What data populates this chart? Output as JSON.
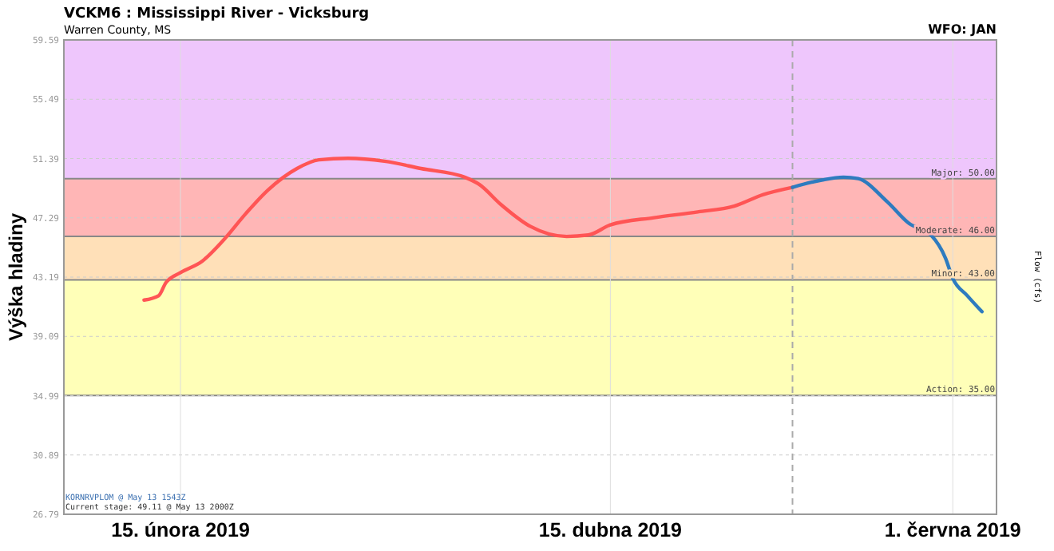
{
  "chart_data": {
    "type": "line",
    "title": "VCKM6 : Mississippi River - Vicksburg",
    "subtitle": "Warren County, MS",
    "ylabel": "Výška hladiny",
    "y2label": "Flow (cfs)",
    "annotations": [
      "WFO: JAN",
      "KORNRVPLOM @ May 13 1543Z",
      "Current stage: 49.11 @ May 13 2000Z"
    ],
    "xlim": [
      "2019-01-30",
      "2019-06-07"
    ],
    "xticks": [
      {
        "value": "2019-02-15",
        "label": "15. února 2019"
      },
      {
        "value": "2019-04-15",
        "label": "15. dubna 2019"
      },
      {
        "value": "2019-06-01",
        "label": "1. června 2019"
      }
    ],
    "ylim": [
      26.79,
      59.59
    ],
    "yticks": [
      26.79,
      30.89,
      34.99,
      39.09,
      43.19,
      47.29,
      51.39,
      55.49,
      59.59
    ],
    "grid": true,
    "marker": "none",
    "line_style": "solid",
    "bands": [
      {
        "axis": "y",
        "from": 35,
        "to": 43,
        "label": "Action: 35.00",
        "color": "#ffffb8"
      },
      {
        "axis": "y",
        "from": 43,
        "to": 46,
        "label": "Minor: 43.00",
        "color": "#ffe0b8"
      },
      {
        "axis": "y",
        "from": 46,
        "to": 50,
        "label": "Moderate: 46.00",
        "color": "#ffb6b6"
      },
      {
        "axis": "y",
        "from": 50,
        "to": 59.59,
        "label": "Major: 50.00",
        "color": "#eec6fc"
      }
    ],
    "ref_lines": [
      {
        "axis": "x",
        "value": "2019-05-10",
        "color": "#aaaaaa",
        "line_style": "dashed"
      }
    ],
    "series": [
      {
        "color": "#ff5555",
        "x": [
          "2019-02-10",
          "2019-02-12",
          "2019-02-13",
          "2019-02-15",
          "2019-02-18",
          "2019-02-21",
          "2019-02-24",
          "2019-02-27",
          "2019-03-03",
          "2019-03-06",
          "2019-03-10",
          "2019-03-15",
          "2019-03-20",
          "2019-03-26",
          "2019-03-28",
          "2019-03-31",
          "2019-04-04",
          "2019-04-09",
          "2019-04-12",
          "2019-04-15",
          "2019-04-21",
          "2019-04-27",
          "2019-05-02",
          "2019-05-06",
          "2019-05-10"
        ],
        "values": [
          41.6,
          41.9,
          42.8,
          43.5,
          44.3,
          45.8,
          47.6,
          49.2,
          50.7,
          51.3,
          51.4,
          51.2,
          50.7,
          50.1,
          49.6,
          48.2,
          46.7,
          46.0,
          46.1,
          46.8,
          47.3,
          47.7,
          48.1,
          48.9,
          49.4
        ]
      },
      {
        "color": "#2e7bbf",
        "x": [
          "2019-05-10",
          "2019-05-14",
          "2019-05-17",
          "2019-05-19",
          "2019-05-23",
          "2019-05-26",
          "2019-05-29",
          "2019-05-31",
          "2019-06-01",
          "2019-06-03",
          "2019-06-05"
        ],
        "values": [
          49.4,
          49.9,
          50.1,
          50.0,
          48.4,
          46.9,
          46.1,
          44.5,
          43.1,
          41.9,
          40.8
        ]
      }
    ]
  }
}
